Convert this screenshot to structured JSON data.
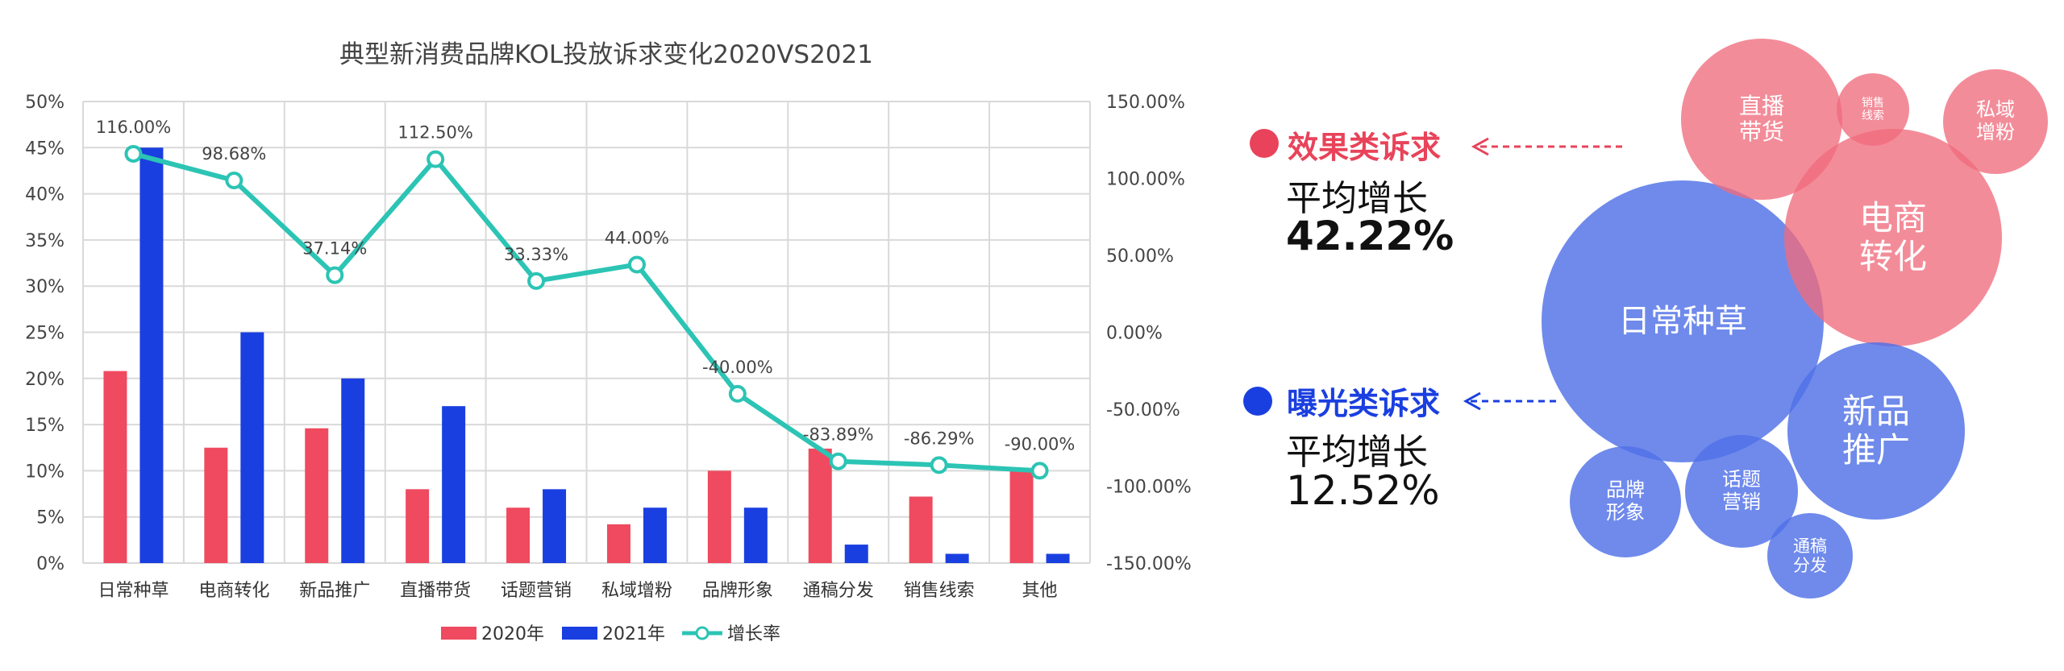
{
  "chart_data": {
    "type": "bar",
    "title": "典型新消费品牌KOL投放诉求变化2020VS2021",
    "categories": [
      "日常种草",
      "电商转化",
      "新品推广",
      "直播带货",
      "话题营销",
      "私域增粉",
      "品牌形象",
      "通稿分发",
      "销售线索",
      "其他"
    ],
    "series": [
      {
        "name": "2020年",
        "type": "bar",
        "axis": "left",
        "values": [
          20.8,
          12.5,
          14.6,
          8.0,
          6.0,
          4.2,
          10.0,
          12.4,
          7.2,
          10.0
        ]
      },
      {
        "name": "2021年",
        "type": "bar",
        "axis": "left",
        "values": [
          45.0,
          25.0,
          20.0,
          17.0,
          8.0,
          6.0,
          6.0,
          2.0,
          1.0,
          1.0
        ]
      },
      {
        "name": "增长率",
        "type": "line",
        "axis": "right",
        "values": [
          116.0,
          98.68,
          37.14,
          112.5,
          33.33,
          44.0,
          -40.0,
          -83.89,
          -86.29,
          -90.0
        ]
      }
    ],
    "data_labels": [
      "116.00%",
      "98.68%",
      "37.14%",
      "112.50%",
      "33.33%",
      "44.00%",
      "-40.00%",
      "-83.89%",
      "-86.29%",
      "-90.00%"
    ],
    "y_left": {
      "min": 0,
      "max": 50,
      "ticks": [
        "0%",
        "5%",
        "10%",
        "15%",
        "20%",
        "25%",
        "30%",
        "35%",
        "40%",
        "45%",
        "50%"
      ]
    },
    "y_right": {
      "min": -150,
      "max": 150,
      "ticks": [
        "-150.00%",
        "-100.00%",
        "-50.00%",
        "0.00%",
        "50.00%",
        "100.00%",
        "150.00%"
      ]
    },
    "legend_position": "bottom",
    "grid": true
  },
  "colors": {
    "y2020": "#EF4A5F",
    "y2021": "#1A3FE0",
    "growth": "#2CC4B4",
    "effect": "#E8435A",
    "exposure": "#1A3FE0"
  },
  "summary": {
    "effect": {
      "title": "效果类诉求",
      "avg_label": "平均增长",
      "avg_value": "42.22%"
    },
    "exposure": {
      "title": "曝光类诉求",
      "avg_label": "平均增长",
      "avg_value": "12.52%"
    }
  },
  "bubbles": [
    {
      "text": "日常种草",
      "color": "blue"
    },
    {
      "text": "电商\n转化",
      "color": "red"
    },
    {
      "text": "新品\n推广",
      "color": "blue"
    },
    {
      "text": "直播\n带货",
      "color": "red"
    },
    {
      "text": "销售\n线索",
      "color": "red"
    },
    {
      "text": "私域\n增粉",
      "color": "red"
    },
    {
      "text": "品牌\n形象",
      "color": "blue"
    },
    {
      "text": "话题\n营销",
      "color": "blue"
    },
    {
      "text": "通稿\n分发",
      "color": "blue"
    }
  ]
}
